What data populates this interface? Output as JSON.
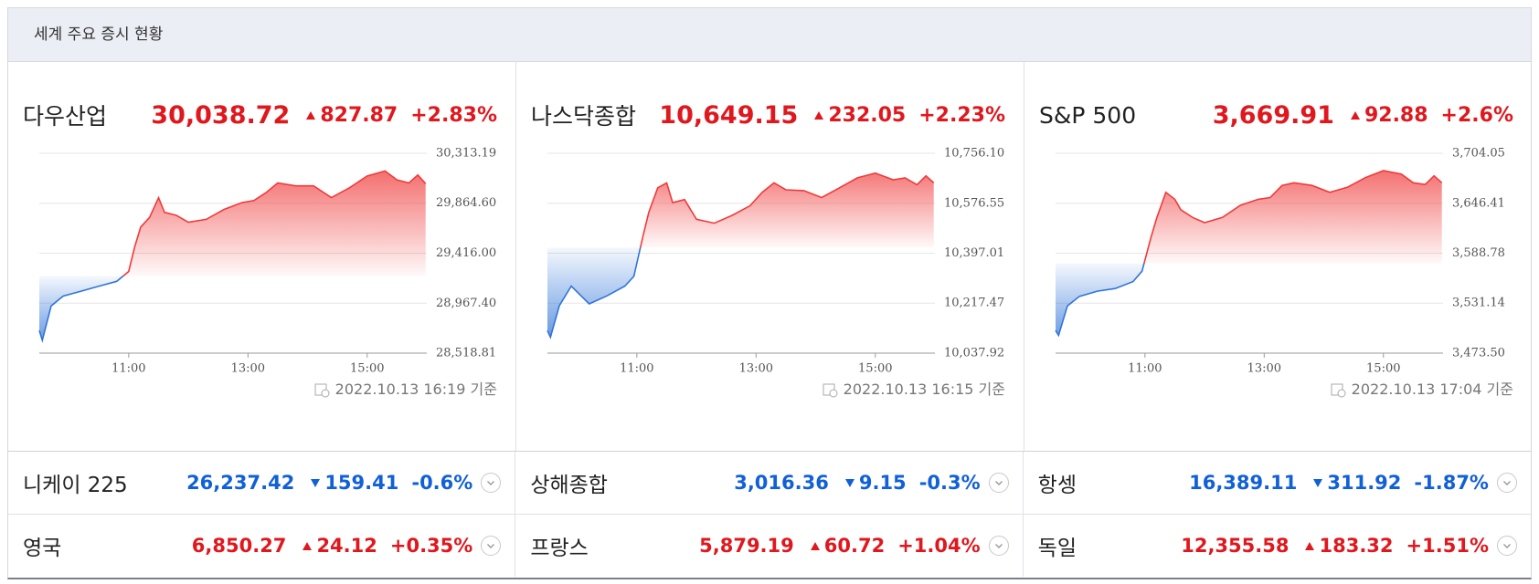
{
  "header": {
    "title": "세계 주요 증시 현황"
  },
  "indices": [
    {
      "name": "다우산업",
      "price": "30,038.72",
      "change": "827.87",
      "change_pct": "+2.83%",
      "direction": "up",
      "timestamp": "2022.10.13 16:19 기준",
      "chart": {
        "type": "line",
        "baseline": 29210.85,
        "x": [
          9.5,
          9.55,
          9.7,
          9.9,
          10.2,
          10.5,
          10.8,
          11.0,
          11.1,
          11.2,
          11.35,
          11.5,
          11.6,
          11.8,
          12.0,
          12.3,
          12.6,
          12.9,
          13.1,
          13.3,
          13.5,
          13.8,
          14.1,
          14.4,
          14.7,
          15.0,
          15.3,
          15.5,
          15.7,
          15.85,
          15.98
        ],
        "values": [
          28722,
          28634,
          28943,
          29031,
          29075,
          29120,
          29164,
          29252,
          29473,
          29650,
          29738,
          29915,
          29783,
          29756,
          29694,
          29720,
          29809,
          29871,
          29889,
          29959,
          30047,
          30021,
          30021,
          29915,
          30003,
          30110,
          30154,
          30074,
          30047,
          30118,
          30040
        ],
        "xlim": [
          9.5,
          16
        ],
        "xticks": [
          {
            "value": 11,
            "label": "11:00"
          },
          {
            "value": 13,
            "label": "13:00"
          },
          {
            "value": 15,
            "label": "15:00"
          }
        ],
        "ylim": [
          28518.81,
          30313.19
        ],
        "yticks": [
          {
            "value": 28518.81,
            "label": "28,518.81"
          },
          {
            "value": 28967.4,
            "label": "28,967.40"
          },
          {
            "value": 29416,
            "label": "29,416.00"
          },
          {
            "value": 29864.6,
            "label": "29,864.60"
          },
          {
            "value": 30313.19,
            "label": "30,313.19"
          }
        ]
      }
    },
    {
      "name": "나스닥종합",
      "price": "10,649.15",
      "change": "232.05",
      "change_pct": "+2.23%",
      "direction": "up",
      "timestamp": "2022.10.13 16:15 기준",
      "chart": {
        "type": "line",
        "baseline": 10417.1,
        "x": [
          9.5,
          9.55,
          9.7,
          9.9,
          10.2,
          10.5,
          10.8,
          10.95,
          11.1,
          11.2,
          11.35,
          11.5,
          11.6,
          11.8,
          12.0,
          12.3,
          12.6,
          12.9,
          13.1,
          13.3,
          13.5,
          13.8,
          14.1,
          14.4,
          14.7,
          15.0,
          15.3,
          15.5,
          15.7,
          15.85,
          15.98
        ],
        "values": [
          10119,
          10095,
          10208,
          10279,
          10215,
          10244,
          10279,
          10314,
          10456,
          10544,
          10632,
          10650,
          10579,
          10590,
          10519,
          10505,
          10533,
          10568,
          10615,
          10650,
          10625,
          10622,
          10597,
          10632,
          10668,
          10685,
          10661,
          10668,
          10643,
          10675,
          10650
        ],
        "xlim": [
          9.5,
          16
        ],
        "xticks": [
          {
            "value": 11,
            "label": "11:00"
          },
          {
            "value": 13,
            "label": "13:00"
          },
          {
            "value": 15,
            "label": "15:00"
          }
        ],
        "ylim": [
          10037.92,
          10756.1
        ],
        "yticks": [
          {
            "value": 10037.92,
            "label": "10,037.92"
          },
          {
            "value": 10217.47,
            "label": "10,217.47"
          },
          {
            "value": 10397.01,
            "label": "10,397.01"
          },
          {
            "value": 10576.55,
            "label": "10,576.55"
          },
          {
            "value": 10756.1,
            "label": "10,756.10"
          }
        ]
      }
    },
    {
      "name": "S&P 500",
      "price": "3,669.91",
      "change": "92.88",
      "change_pct": "+2.6%",
      "direction": "up",
      "timestamp": "2022.10.13 17:04 기준",
      "chart": {
        "type": "line",
        "baseline": 3577.03,
        "x": [
          9.5,
          9.55,
          9.7,
          9.9,
          10.2,
          10.5,
          10.8,
          10.95,
          11.1,
          11.2,
          11.35,
          11.5,
          11.6,
          11.8,
          12.0,
          12.3,
          12.6,
          12.9,
          13.1,
          13.3,
          13.5,
          13.8,
          14.1,
          14.4,
          14.7,
          15.0,
          15.3,
          15.5,
          15.7,
          15.85,
          15.98
        ],
        "values": [
          3499.6,
          3494,
          3528,
          3539,
          3545,
          3548,
          3556,
          3568,
          3607,
          3630,
          3659,
          3651,
          3639,
          3630,
          3624,
          3630,
          3644,
          3651,
          3653,
          3667,
          3670,
          3667,
          3659,
          3665,
          3676,
          3684,
          3680,
          3670,
          3668,
          3678,
          3670
        ],
        "xlim": [
          9.5,
          16
        ],
        "xticks": [
          {
            "value": 11,
            "label": "11:00"
          },
          {
            "value": 13,
            "label": "13:00"
          },
          {
            "value": 15,
            "label": "15:00"
          }
        ],
        "ylim": [
          3473.5,
          3704.05
        ],
        "yticks": [
          {
            "value": 3473.5,
            "label": "3,473.50"
          },
          {
            "value": 3531.14,
            "label": "3,531.14"
          },
          {
            "value": 3588.78,
            "label": "3,588.78"
          },
          {
            "value": 3646.41,
            "label": "3,646.41"
          },
          {
            "value": 3704.05,
            "label": "3,704.05"
          }
        ]
      }
    }
  ],
  "markets": [
    {
      "name": "니케이 225",
      "price": "26,237.42",
      "change": "159.41",
      "change_pct": "-0.6%",
      "direction": "down"
    },
    {
      "name": "상해종합",
      "price": "3,016.36",
      "change": "9.15",
      "change_pct": "-0.3%",
      "direction": "down"
    },
    {
      "name": "항셍",
      "price": "16,389.11",
      "change": "311.92",
      "change_pct": "-1.87%",
      "direction": "down"
    },
    {
      "name": "영국",
      "price": "6,850.27",
      "change": "24.12",
      "change_pct": "+0.35%",
      "direction": "up"
    },
    {
      "name": "프랑스",
      "price": "5,879.19",
      "change": "60.72",
      "change_pct": "+1.04%",
      "direction": "up"
    },
    {
      "name": "독일",
      "price": "12,355.58",
      "change": "183.32",
      "change_pct": "+1.51%",
      "direction": "up"
    }
  ]
}
